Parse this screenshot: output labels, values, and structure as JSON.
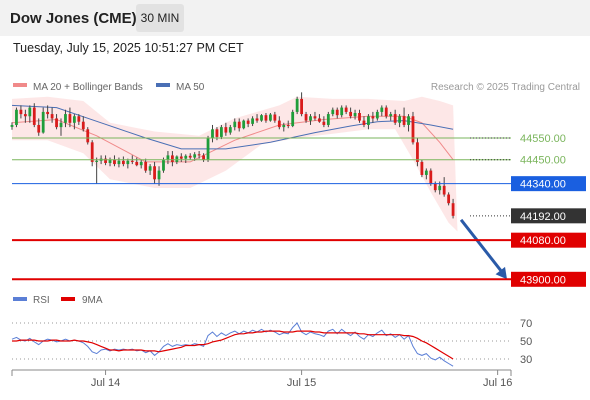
{
  "header": {
    "title": "Dow Jones (CME)",
    "timeframe": "30 MIN"
  },
  "timestamp": "Tuesday, July 15, 2025 10:51:27 PM CET",
  "legend": {
    "ma20": "MA 20 + Bollinger Bands",
    "ma50": "MA 50",
    "credit": "Research © 2025 Trading Central"
  },
  "rsi_legend": {
    "rsi": "RSI",
    "ma": "9MA"
  },
  "colors": {
    "up": "#1f9d3a",
    "down": "#d91b1b",
    "ma20": "#f08a8a",
    "ma50": "#4a6fb5",
    "band": "#fde3e3",
    "support": "#e00000",
    "pivot": "#1a5fe0",
    "resistance": "#7ab55c",
    "arrow": "#2a5aa8",
    "rsi": "#5b7fd6",
    "rsi_ma": "#e00000"
  },
  "chart_data": {
    "type": "candlestick",
    "price_range": [
      43860,
      44780
    ],
    "x_range": [
      0,
      112
    ],
    "x_ticks": [
      {
        "i": 21,
        "label": "Jul 14"
      },
      {
        "i": 65,
        "label": "Jul 15"
      },
      {
        "i": 109,
        "label": "Jul 16"
      }
    ],
    "candles": [
      [
        44601,
        44622,
        44588,
        44610
      ],
      [
        44610,
        44690,
        44600,
        44680
      ],
      [
        44680,
        44700,
        44640,
        44660
      ],
      [
        44660,
        44680,
        44620,
        44650
      ],
      [
        44650,
        44700,
        44620,
        44690
      ],
      [
        44690,
        44710,
        44600,
        44610
      ],
      [
        44610,
        44640,
        44560,
        44575
      ],
      [
        44575,
        44690,
        44570,
        44670
      ],
      [
        44670,
        44700,
        44640,
        44660
      ],
      [
        44660,
        44690,
        44620,
        44640
      ],
      [
        44640,
        44660,
        44590,
        44600
      ],
      [
        44600,
        44640,
        44560,
        44620
      ],
      [
        44620,
        44680,
        44600,
        44660
      ],
      [
        44660,
        44690,
        44600,
        44620
      ],
      [
        44620,
        44660,
        44590,
        44650
      ],
      [
        44650,
        44660,
        44610,
        44625
      ],
      [
        44625,
        44650,
        44580,
        44590
      ],
      [
        44590,
        44600,
        44520,
        44530
      ],
      [
        44530,
        44540,
        44420,
        44440
      ],
      [
        44440,
        44460,
        44340,
        44445
      ],
      [
        44445,
        44470,
        44430,
        44455
      ],
      [
        44455,
        44470,
        44425,
        44435
      ],
      [
        44435,
        44460,
        44420,
        44450
      ],
      [
        44450,
        44470,
        44420,
        44430
      ],
      [
        44430,
        44460,
        44415,
        44445
      ],
      [
        44445,
        44465,
        44420,
        44430
      ],
      [
        44430,
        44455,
        44410,
        44445
      ],
      [
        44445,
        44470,
        44430,
        44440
      ],
      [
        44440,
        44460,
        44420,
        44425
      ],
      [
        44425,
        44450,
        44410,
        44440
      ],
      [
        44440,
        44455,
        44390,
        44400
      ],
      [
        44400,
        44430,
        44380,
        44420
      ],
      [
        44420,
        44440,
        44340,
        44360
      ],
      [
        44360,
        44420,
        44330,
        44400
      ],
      [
        44400,
        44460,
        44390,
        44450
      ],
      [
        44450,
        44490,
        44430,
        44470
      ],
      [
        44470,
        44490,
        44420,
        44440
      ],
      [
        44440,
        44470,
        44430,
        44465
      ],
      [
        44465,
        44480,
        44440,
        44455
      ],
      [
        44455,
        44475,
        44435,
        44468
      ],
      [
        44468,
        44480,
        44450,
        44460
      ],
      [
        44460,
        44485,
        44445,
        44475
      ],
      [
        44475,
        44490,
        44455,
        44470
      ],
      [
        44470,
        44480,
        44440,
        44450
      ],
      [
        44450,
        44560,
        44440,
        44550
      ],
      [
        44550,
        44610,
        44530,
        44590
      ],
      [
        44590,
        44600,
        44540,
        44555
      ],
      [
        44555,
        44610,
        44545,
        44600
      ],
      [
        44600,
        44620,
        44560,
        44575
      ],
      [
        44575,
        44610,
        44565,
        44600
      ],
      [
        44600,
        44640,
        44585,
        44625
      ],
      [
        44625,
        44640,
        44580,
        44595
      ],
      [
        44595,
        44635,
        44590,
        44630
      ],
      [
        44630,
        44640,
        44600,
        44615
      ],
      [
        44615,
        44650,
        44605,
        44640
      ],
      [
        44640,
        44660,
        44620,
        44630
      ],
      [
        44630,
        44660,
        44625,
        44655
      ],
      [
        44655,
        44665,
        44620,
        44630
      ],
      [
        44630,
        44665,
        44625,
        44658
      ],
      [
        44658,
        44670,
        44620,
        44630
      ],
      [
        44630,
        44650,
        44590,
        44600
      ],
      [
        44600,
        44620,
        44580,
        44610
      ],
      [
        44610,
        44630,
        44595,
        44605
      ],
      [
        44605,
        44680,
        44600,
        44670
      ],
      [
        44670,
        44740,
        44660,
        44730
      ],
      [
        44730,
        44760,
        44650,
        44660
      ],
      [
        44660,
        44670,
        44620,
        44630
      ],
      [
        44630,
        44660,
        44610,
        44650
      ],
      [
        44650,
        44670,
        44630,
        44640
      ],
      [
        44640,
        44660,
        44620,
        44625
      ],
      [
        44625,
        44650,
        44600,
        44610
      ],
      [
        44610,
        44670,
        44600,
        44660
      ],
      [
        44660,
        44690,
        44650,
        44680
      ],
      [
        44680,
        44690,
        44640,
        44655
      ],
      [
        44655,
        44700,
        44645,
        44690
      ],
      [
        44690,
        44700,
        44660,
        44670
      ],
      [
        44670,
        44690,
        44640,
        44650
      ],
      [
        44650,
        44680,
        44635,
        44665
      ],
      [
        44665,
        44680,
        44620,
        44630
      ],
      [
        44630,
        44650,
        44600,
        44610
      ],
      [
        44610,
        44660,
        44590,
        44650
      ],
      [
        44650,
        44670,
        44620,
        44640
      ],
      [
        44640,
        44680,
        44630,
        44670
      ],
      [
        44670,
        44700,
        44650,
        44690
      ],
      [
        44690,
        44700,
        44640,
        44650
      ],
      [
        44650,
        44670,
        44630,
        44660
      ],
      [
        44660,
        44680,
        44610,
        44620
      ],
      [
        44620,
        44660,
        44600,
        44650
      ],
      [
        44650,
        44690,
        44600,
        44610
      ],
      [
        44610,
        44660,
        44580,
        44650
      ],
      [
        44650,
        44670,
        44520,
        44530
      ],
      [
        44530,
        44550,
        44420,
        44440
      ],
      [
        44440,
        44450,
        44370,
        44380
      ],
      [
        44380,
        44410,
        44360,
        44400
      ],
      [
        44400,
        44410,
        44330,
        44340
      ],
      [
        44340,
        44350,
        44300,
        44310
      ],
      [
        44310,
        44350,
        44290,
        44330
      ],
      [
        44330,
        44370,
        44280,
        44290
      ],
      [
        44290,
        44300,
        44240,
        44250
      ],
      [
        44250,
        44270,
        44180,
        44192
      ]
    ],
    "ma20": [
      [
        0,
        44620
      ],
      [
        10,
        44635
      ],
      [
        19,
        44560
      ],
      [
        30,
        44440
      ],
      [
        40,
        44440
      ],
      [
        50,
        44540
      ],
      [
        60,
        44610
      ],
      [
        70,
        44635
      ],
      [
        80,
        44650
      ],
      [
        88,
        44650
      ],
      [
        92,
        44620
      ],
      [
        96,
        44530
      ],
      [
        99,
        44450
      ]
    ],
    "ma50": [
      [
        0,
        44700
      ],
      [
        10,
        44690
      ],
      [
        20,
        44620
      ],
      [
        30,
        44550
      ],
      [
        38,
        44500
      ],
      [
        48,
        44500
      ],
      [
        58,
        44530
      ],
      [
        68,
        44575
      ],
      [
        76,
        44605
      ],
      [
        82,
        44625
      ],
      [
        88,
        44630
      ],
      [
        94,
        44610
      ],
      [
        99,
        44590
      ]
    ],
    "bb_upper": [
      [
        0,
        44730
      ],
      [
        8,
        44740
      ],
      [
        16,
        44720
      ],
      [
        22,
        44620
      ],
      [
        32,
        44580
      ],
      [
        42,
        44560
      ],
      [
        50,
        44640
      ],
      [
        60,
        44700
      ],
      [
        64,
        44740
      ],
      [
        72,
        44730
      ],
      [
        80,
        44730
      ],
      [
        88,
        44720
      ],
      [
        92,
        44740
      ],
      [
        96,
        44720
      ],
      [
        99,
        44700
      ]
    ],
    "bb_lower": [
      [
        0,
        44540
      ],
      [
        8,
        44540
      ],
      [
        16,
        44480
      ],
      [
        22,
        44360
      ],
      [
        32,
        44320
      ],
      [
        40,
        44320
      ],
      [
        48,
        44400
      ],
      [
        56,
        44520
      ],
      [
        64,
        44550
      ],
      [
        72,
        44570
      ],
      [
        80,
        44590
      ],
      [
        86,
        44590
      ],
      [
        90,
        44450
      ],
      [
        94,
        44300
      ],
      [
        98,
        44160
      ],
      [
        100,
        44120
      ]
    ],
    "levels": [
      {
        "value": 44550.0,
        "label": "44550.00",
        "kind": "resistance"
      },
      {
        "value": 44450.0,
        "label": "44450.00",
        "kind": "resistance"
      },
      {
        "value": 44340.0,
        "label": "44340.00",
        "kind": "pivot"
      },
      {
        "value": 44192.0,
        "label": "44192.00",
        "kind": "last"
      },
      {
        "value": 44080.0,
        "label": "44080.00",
        "kind": "support"
      },
      {
        "value": 43900.0,
        "label": "43900.00",
        "kind": "support"
      }
    ],
    "rsi": {
      "range": [
        20,
        80
      ],
      "ticks": [
        70,
        50,
        30
      ],
      "values": [
        52,
        54,
        51,
        50,
        53,
        49,
        46,
        50,
        52,
        51,
        49,
        50,
        52,
        50,
        51,
        50,
        48,
        44,
        38,
        36,
        40,
        41,
        39,
        41,
        40,
        41,
        40,
        41,
        39,
        40,
        37,
        39,
        34,
        38,
        44,
        47,
        44,
        46,
        45,
        46,
        45,
        47,
        46,
        44,
        56,
        60,
        55,
        59,
        56,
        59,
        61,
        58,
        61,
        59,
        62,
        60,
        63,
        60,
        62,
        60,
        57,
        59,
        58,
        65,
        70,
        60,
        57,
        60,
        58,
        57,
        55,
        61,
        63,
        58,
        63,
        59,
        56,
        60,
        55,
        52,
        57,
        55,
        59,
        62,
        56,
        58,
        54,
        57,
        52,
        56,
        44,
        36,
        34,
        36,
        31,
        29,
        32,
        28,
        25,
        22
      ],
      "ma9": [
        50,
        50,
        51,
        51,
        51,
        51,
        50,
        50,
        50,
        51,
        51,
        50,
        50,
        50,
        51,
        50,
        50,
        49,
        48,
        46,
        44,
        42,
        40,
        40,
        39,
        40,
        40,
        40,
        40,
        40,
        39,
        39,
        39,
        38,
        39,
        40,
        41,
        42,
        43,
        45,
        45,
        45,
        46,
        46,
        47,
        49,
        50,
        51,
        53,
        55,
        57,
        58,
        58,
        59,
        59,
        60,
        60,
        61,
        61,
        61,
        61,
        60,
        60,
        60,
        61,
        61,
        61,
        61,
        60,
        60,
        59,
        59,
        59,
        59,
        59,
        59,
        59,
        59,
        58,
        58,
        57,
        57,
        57,
        57,
        57,
        57,
        57,
        57,
        56,
        56,
        55,
        53,
        50,
        48,
        45,
        42,
        39,
        36,
        33,
        30
      ]
    }
  }
}
